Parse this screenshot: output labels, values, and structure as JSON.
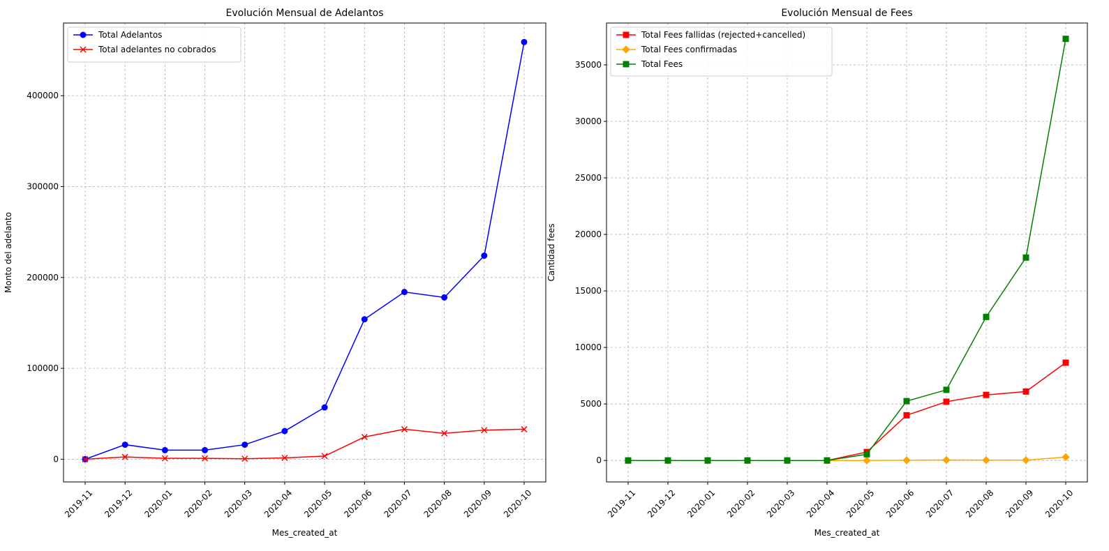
{
  "chart_data": [
    {
      "type": "line",
      "title": "Evolución Mensual de Adelantos",
      "xlabel": "Mes_created_at",
      "ylabel": "Monto del adelanto",
      "categories": [
        "2019-11",
        "2019-12",
        "2020-01",
        "2020-02",
        "2020-03",
        "2020-04",
        "2020-05",
        "2020-06",
        "2020-07",
        "2020-08",
        "2020-09",
        "2020-10"
      ],
      "yticks": [
        0,
        100000,
        200000,
        300000,
        400000
      ],
      "ylim": [
        -25000,
        480000
      ],
      "grid": true,
      "legend_position": "upper-left",
      "series": [
        {
          "name": "Total Adelantos",
          "color": "#0000ff",
          "marker": "circle",
          "values": [
            0,
            16000,
            10000,
            10000,
            16000,
            31000,
            57000,
            154000,
            184000,
            178000,
            224000,
            459000
          ]
        },
        {
          "name": "Total adelantes no cobrados",
          "color": "#ff0000",
          "marker": "x",
          "values": [
            0,
            2500,
            1000,
            1000,
            500,
            1500,
            3500,
            24500,
            33000,
            28500,
            32000,
            33000
          ]
        }
      ]
    },
    {
      "type": "line",
      "title": "Evolución Mensual de Fees",
      "xlabel": "Mes_created_at",
      "ylabel": "Cantidad fees",
      "categories": [
        "2019-11",
        "2019-12",
        "2020-01",
        "2020-02",
        "2020-03",
        "2020-04",
        "2020-05",
        "2020-06",
        "2020-07",
        "2020-08",
        "2020-09",
        "2020-10"
      ],
      "yticks": [
        0,
        5000,
        10000,
        15000,
        20000,
        25000,
        30000,
        35000
      ],
      "ylim": [
        -1900,
        38700
      ],
      "grid": true,
      "legend_position": "upper-left",
      "series": [
        {
          "name": "Total Fees fallidas (rejected+cancelled)",
          "color": "#ff0000",
          "marker": "square",
          "values": [
            0,
            0,
            0,
            0,
            0,
            0,
            750,
            4000,
            5200,
            5800,
            6100,
            8650
          ]
        },
        {
          "name": "Total Fees confirmadas",
          "color": "#ffa500",
          "marker": "diamond",
          "values": [
            0,
            0,
            0,
            0,
            0,
            0,
            0,
            20,
            40,
            30,
            30,
            300
          ]
        },
        {
          "name": "Total Fees",
          "color": "#008000",
          "marker": "square",
          "values": [
            0,
            0,
            0,
            0,
            0,
            0,
            550,
            5250,
            6250,
            12700,
            17950,
            37300
          ]
        }
      ]
    }
  ]
}
